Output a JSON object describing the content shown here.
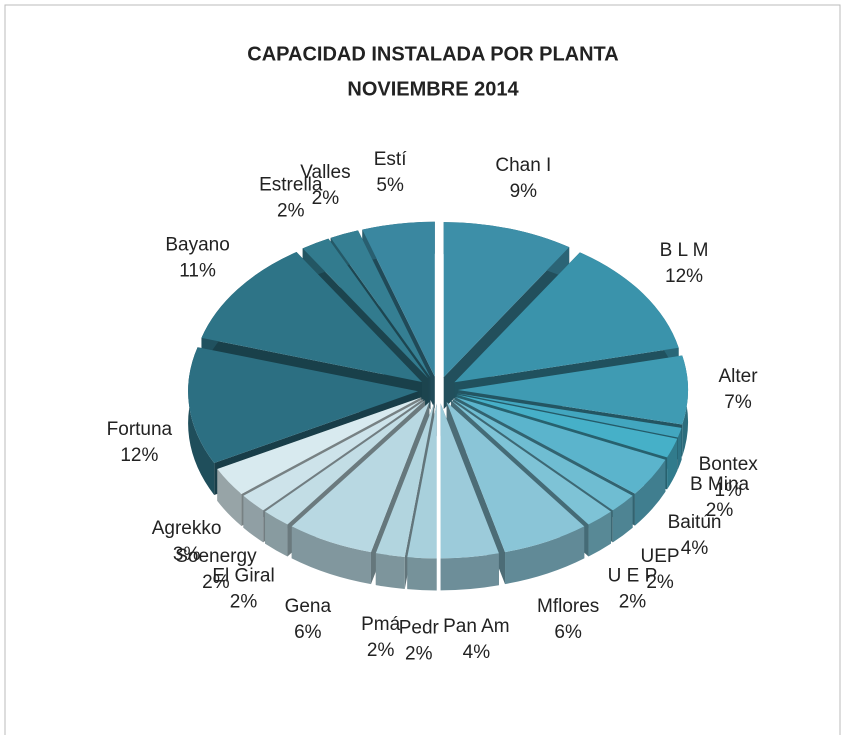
{
  "chart_data": {
    "type": "pie3d",
    "title": "CAPACIDAD INSTALADA POR PLANTA",
    "subtitle": "NOVIEMBRE 2014",
    "categories": [
      "Chan I",
      "B L M",
      "Alter",
      "Bontex",
      "B Mina",
      "Baitún",
      "UEP",
      "U E P",
      "Mflores",
      "Pan Am",
      "Pedr",
      "Pmá",
      "Gena",
      "El Giral",
      "Soenergy",
      "Agrekko",
      "Fortuna",
      "Bayano",
      "Estrella",
      "Valles",
      "Estí"
    ],
    "values": [
      9,
      12,
      7,
      1,
      2,
      4,
      2,
      2,
      6,
      4,
      2,
      2,
      6,
      2,
      2,
      3,
      12,
      11,
      2,
      2,
      5
    ],
    "value_labels": [
      "9%",
      "12%",
      "7%",
      "1%",
      "2%",
      "4%",
      "2%",
      "2%",
      "6%",
      "4%",
      "2%",
      "2%",
      "6%",
      "2%",
      "2%",
      "3%",
      "12%",
      "11%",
      "2%",
      "2%",
      "5%"
    ],
    "colors": [
      "#3d8fa8",
      "#3a93ab",
      "#3f9bb3",
      "#42a6bf",
      "#46b0c8",
      "#5bb4cc",
      "#6fbdd2",
      "#7ec3d6",
      "#8ac5d7",
      "#9ccbda",
      "#a8d0dc",
      "#b2d5df",
      "#b8d8e2",
      "#c2dde5",
      "#cde3ea",
      "#d8eaef",
      "#2c6f82",
      "#2e7487",
      "#327b8e",
      "#357f93",
      "#3a87a0"
    ]
  }
}
